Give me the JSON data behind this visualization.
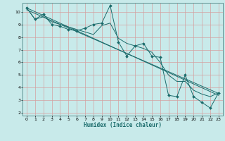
{
  "xlabel": "Humidex (Indice chaleur)",
  "bg_color": "#c8eaea",
  "grid_color": "#d4a0a0",
  "line_color": "#1a6b6b",
  "xlim": [
    -0.5,
    23.5
  ],
  "ylim": [
    1.8,
    10.7
  ],
  "xticks": [
    0,
    1,
    2,
    3,
    4,
    5,
    6,
    7,
    8,
    9,
    10,
    11,
    12,
    13,
    14,
    15,
    16,
    17,
    18,
    19,
    20,
    21,
    22,
    23
  ],
  "yticks": [
    2,
    3,
    4,
    5,
    6,
    7,
    8,
    9,
    10
  ],
  "line1_x": [
    0,
    1,
    2,
    3,
    4,
    5,
    6,
    7,
    8,
    9,
    10,
    11,
    12,
    13,
    14,
    15,
    16,
    17,
    18,
    19,
    20,
    21,
    22,
    23
  ],
  "line1_y": [
    10.3,
    9.4,
    9.8,
    9.0,
    8.85,
    8.6,
    8.5,
    8.7,
    9.0,
    9.1,
    10.5,
    7.6,
    6.5,
    7.3,
    7.5,
    6.5,
    6.4,
    3.4,
    3.3,
    5.0,
    3.3,
    2.85,
    2.4,
    3.6
  ],
  "line2_x": [
    0,
    23
  ],
  "line2_y": [
    10.3,
    3.4
  ],
  "line3_x": [
    0,
    1,
    2,
    3,
    4,
    5,
    6,
    7,
    8,
    9,
    10,
    11,
    12,
    13,
    14,
    15,
    16,
    17,
    18,
    19,
    20,
    21,
    22,
    23
  ],
  "line3_y": [
    10.3,
    9.4,
    9.6,
    9.2,
    9.0,
    8.8,
    8.6,
    8.4,
    8.2,
    8.9,
    9.1,
    7.9,
    7.5,
    7.3,
    7.1,
    6.8,
    6.0,
    5.0,
    4.5,
    4.5,
    3.8,
    3.5,
    3.3,
    3.6
  ],
  "line4_x": [
    0,
    23
  ],
  "line4_y": [
    10.15,
    3.55
  ]
}
